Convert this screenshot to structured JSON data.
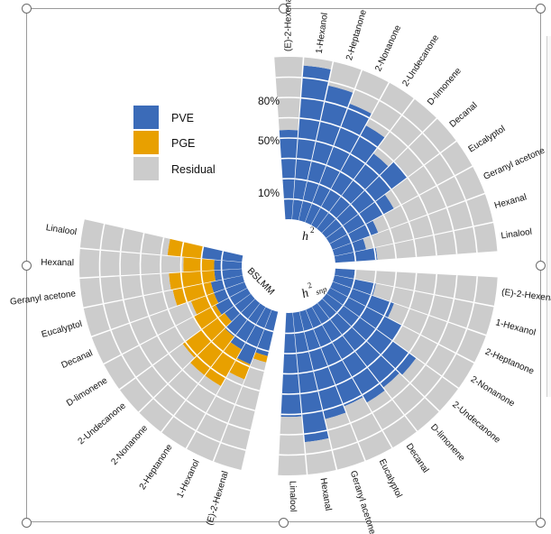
{
  "chart_data": [
    {
      "type": "bar",
      "categories": [
        "(E)-2-Hexenal",
        "1-Hexanol",
        "2-Heptanone",
        "2-Nonanone",
        "2-Undecanone",
        "D-limonene",
        "Decanal",
        "Eucalyptol",
        "Geranyl  acetone",
        "Hexanal",
        "Linalool"
      ],
      "title_main": "h",
      "title_sup": "2",
      "tick_labels": [
        "10%",
        "50%",
        "80%"
      ],
      "series": [
        {
          "name": "PVE",
          "values": [
            0.55,
            0.95,
            0.85,
            0.78,
            0.7,
            0.58,
            0.63,
            0.45,
            0.3,
            0.2,
            0.26
          ]
        },
        {
          "name": "Residual",
          "values": [
            0.45,
            0.05,
            0.15,
            0.22,
            0.3,
            0.42,
            0.37,
            0.55,
            0.7,
            0.8,
            0.74
          ]
        }
      ]
    },
    {
      "type": "bar",
      "categories": [
        "(E)-2-Hexenal",
        "1-Hexanol",
        "2-Heptanone",
        "2-Nonanone",
        "2-Undecanone",
        "D-limonene",
        "Decanal",
        "Eucalyptol",
        "Geranyl  acetone",
        "Hexanal",
        "Linalool"
      ],
      "title_main": "h",
      "title_sup": "2",
      "title_sub": "snp",
      "series": [
        {
          "name": "PVE",
          "values": [
            0.12,
            0.26,
            0.4,
            0.5,
            0.68,
            0.66,
            0.68,
            0.64,
            0.68,
            0.8,
            0.64
          ]
        },
        {
          "name": "Residual",
          "values": [
            0.88,
            0.74,
            0.6,
            0.5,
            0.32,
            0.34,
            0.32,
            0.36,
            0.32,
            0.2,
            0.36
          ]
        }
      ]
    },
    {
      "type": "bar",
      "categories": [
        "(E)-2-Hexenal",
        "1-Hexanol",
        "2-Heptanone",
        "2-Nonanone",
        "2-Undecanone",
        "D-limonene",
        "Decanal",
        "Eucalyptol",
        "Geranyl  acetone",
        "Hexanal",
        "Linalool"
      ],
      "title": "BSLMM",
      "series": [
        {
          "name": "PVE",
          "values": [
            0.28,
            0.36,
            0.3,
            0.26,
            0.2,
            0.22,
            0.2,
            0.2,
            0.17,
            0.17,
            0.25
          ]
        },
        {
          "name": "PGE",
          "values": [
            0.04,
            0.1,
            0.26,
            0.3,
            0.32,
            0.16,
            0.15,
            0.24,
            0.28,
            0.19,
            0.21
          ]
        },
        {
          "name": "Residual",
          "values": [
            0.68,
            0.54,
            0.44,
            0.44,
            0.48,
            0.62,
            0.65,
            0.56,
            0.55,
            0.64,
            0.54
          ]
        }
      ]
    }
  ],
  "legend": [
    {
      "name": "PVE",
      "color": "#3b6bb8"
    },
    {
      "name": "PGE",
      "color": "#e8a000"
    },
    {
      "name": "Residual",
      "color": "#cccccc"
    }
  ],
  "colors": {
    "pve": "#3b6bb8",
    "pge": "#e8a000",
    "residual": "#cccccc",
    "frame": "#9a9a9a"
  }
}
